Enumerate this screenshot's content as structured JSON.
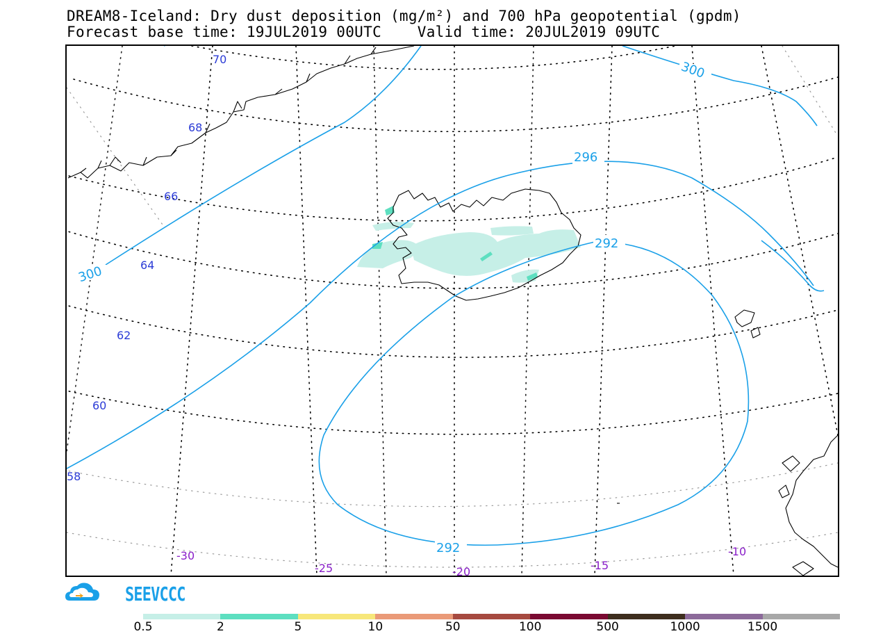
{
  "title": {
    "line1": "DREAM8-Iceland: Dry dust deposition (mg/m²) and 700 hPa geopotential (gpdm)",
    "line2": "Forecast base time: 19JUL2019 00UTC    Valid time: 20JUL2019 09UTC"
  },
  "logo": {
    "text": "SEEVCCC",
    "icon": "cloud-icon",
    "color": "#1aa0e8"
  },
  "map": {
    "latitude_labels": [
      "70",
      "68",
      "66",
      "64",
      "62",
      "60",
      "58"
    ],
    "longitude_labels": [
      "-30",
      "-25",
      "-20",
      "-15",
      "-10"
    ],
    "contours": [
      {
        "value": 300,
        "labels": [
          "300",
          "300"
        ]
      },
      {
        "value": 296,
        "labels": [
          "296"
        ]
      },
      {
        "value": 292,
        "labels": [
          "292",
          "292"
        ]
      }
    ],
    "contour_color": "#1aa0e8"
  },
  "legend": {
    "colors": [
      "#c6efe7",
      "#5ddfc0",
      "#f7e77a",
      "#ea9a78",
      "#a64a40",
      "#7a0a32",
      "#3e2e1e",
      "#8c6a9a",
      "#a8a8a8"
    ],
    "labels": [
      "0.5",
      "2",
      "5",
      "10",
      "50",
      "100",
      "500",
      "1000",
      "1500"
    ]
  }
}
